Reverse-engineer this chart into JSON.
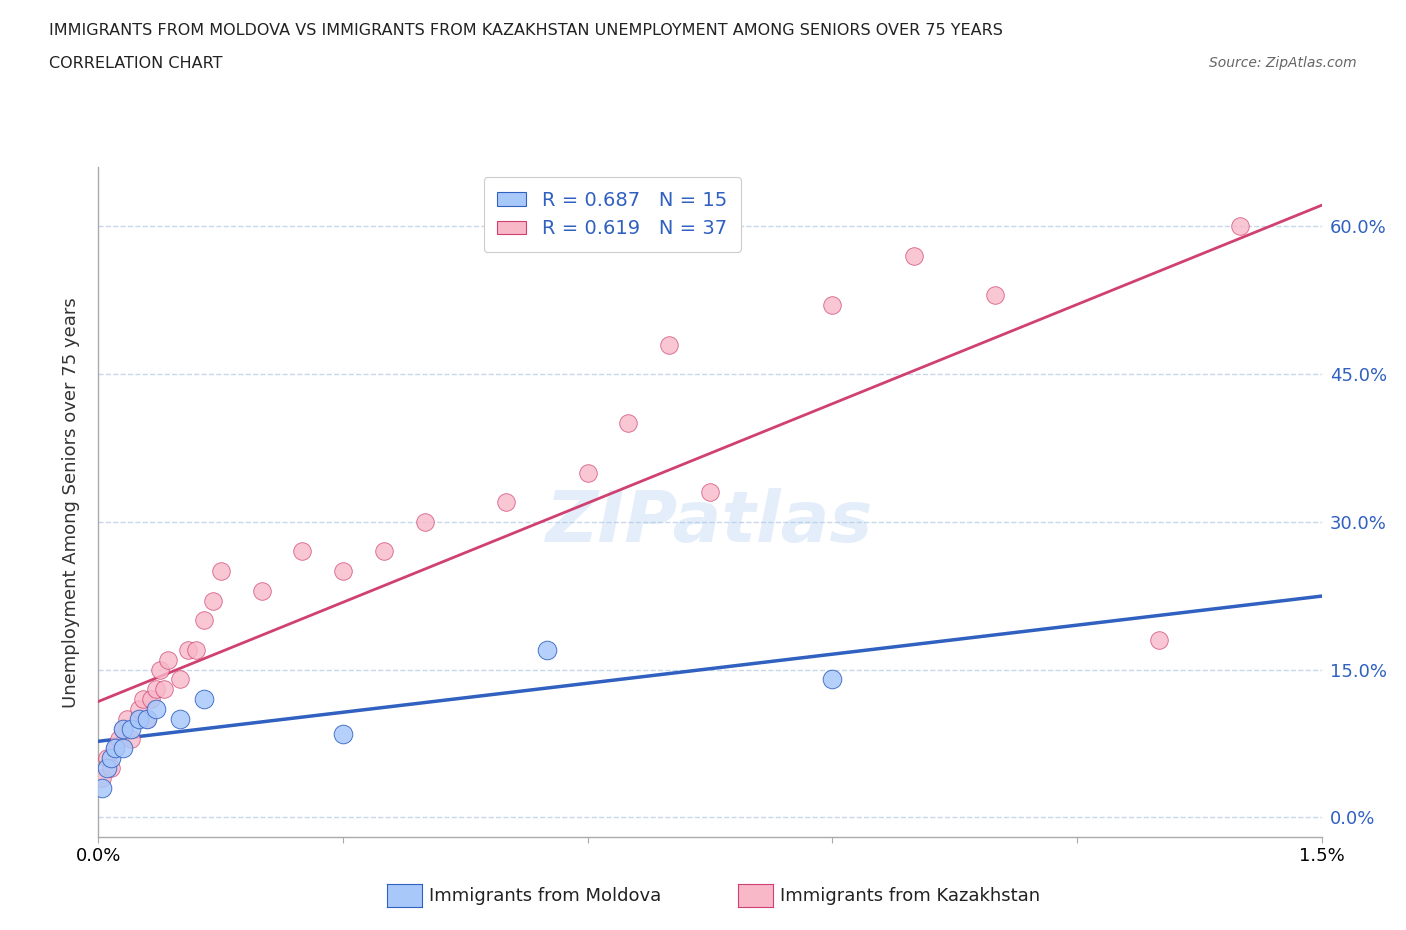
{
  "title_line1": "IMMIGRANTS FROM MOLDOVA VS IMMIGRANTS FROM KAZAKHSTAN UNEMPLOYMENT AMONG SENIORS OVER 75 YEARS",
  "title_line2": "CORRELATION CHART",
  "source": "Source: ZipAtlas.com",
  "ylabel": "Unemployment Among Seniors over 75 years",
  "xlabel_moldova": "Immigrants from Moldova",
  "xlabel_kazakhstan": "Immigrants from Kazakhstan",
  "xmin": 0.0,
  "xmax": 0.015,
  "ymin": -0.02,
  "ymax": 0.66,
  "yticks": [
    0.0,
    0.15,
    0.3,
    0.45,
    0.6
  ],
  "ytick_labels": [
    "0.0%",
    "15.0%",
    "30.0%",
    "45.0%",
    "60.0%"
  ],
  "xticks": [
    0.0,
    0.003,
    0.006,
    0.009,
    0.012,
    0.015
  ],
  "xtick_labels": [
    "0.0%",
    "",
    "",
    "",
    "",
    "1.5%"
  ],
  "color_moldova": "#a8c8fa",
  "color_kazakhstan": "#f8b8c8",
  "line_color_moldova": "#3060c0",
  "line_color_kazakhstan": "#d04070",
  "R_moldova": 0.687,
  "N_moldova": 15,
  "R_kazakhstan": 0.619,
  "N_kazakhstan": 37,
  "moldova_x": [
    5e-05,
    0.0001,
    0.00015,
    0.0002,
    0.0003,
    0.0003,
    0.0004,
    0.0005,
    0.0006,
    0.0007,
    0.001,
    0.0013,
    0.003,
    0.0055,
    0.009
  ],
  "moldova_y": [
    0.03,
    0.05,
    0.06,
    0.07,
    0.07,
    0.09,
    0.09,
    0.1,
    0.1,
    0.11,
    0.1,
    0.12,
    0.085,
    0.17,
    0.14
  ],
  "kazakhstan_x": [
    5e-05,
    0.0001,
    0.00015,
    0.0002,
    0.00025,
    0.0003,
    0.00035,
    0.0004,
    0.0005,
    0.00055,
    0.0006,
    0.00065,
    0.0007,
    0.00075,
    0.0008,
    0.00085,
    0.001,
    0.0011,
    0.0012,
    0.0013,
    0.0014,
    0.0015,
    0.002,
    0.0025,
    0.003,
    0.0035,
    0.004,
    0.005,
    0.006,
    0.0065,
    0.007,
    0.0075,
    0.009,
    0.01,
    0.011,
    0.013,
    0.014
  ],
  "kazakhstan_y": [
    0.04,
    0.06,
    0.05,
    0.07,
    0.08,
    0.09,
    0.1,
    0.08,
    0.11,
    0.12,
    0.1,
    0.12,
    0.13,
    0.15,
    0.13,
    0.16,
    0.14,
    0.17,
    0.17,
    0.2,
    0.22,
    0.25,
    0.23,
    0.27,
    0.25,
    0.27,
    0.3,
    0.32,
    0.35,
    0.4,
    0.48,
    0.33,
    0.52,
    0.57,
    0.53,
    0.18,
    0.6
  ],
  "watermark": "ZIPatlas",
  "grid_color": "#c8d8e8",
  "background_color": "#ffffff"
}
